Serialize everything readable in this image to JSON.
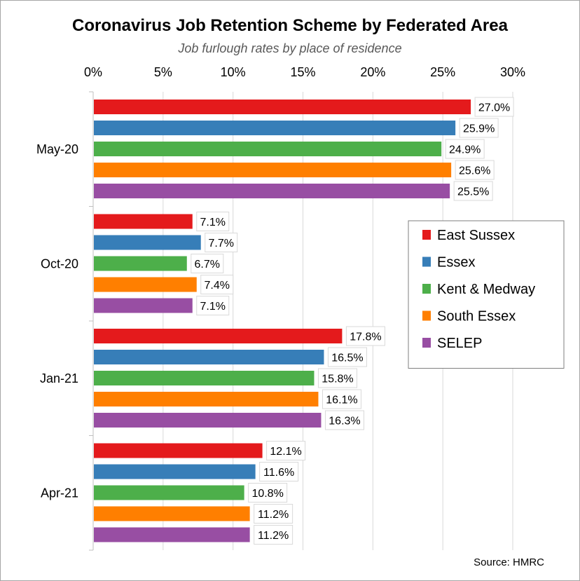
{
  "chart_data": {
    "type": "bar",
    "orientation": "horizontal",
    "title": "Coronavirus Job Retention Scheme by Federated Area",
    "subtitle": "Job furlough rates by place of residence",
    "xlim": [
      0,
      30
    ],
    "xticks": [
      "0%",
      "5%",
      "10%",
      "15%",
      "20%",
      "25%",
      "30%"
    ],
    "xtick_values": [
      0,
      5,
      10,
      15,
      20,
      25,
      30
    ],
    "grid": "vertical",
    "legend_position": "right",
    "categories": [
      "May-20",
      "Oct-20",
      "Jan-21",
      "Apr-21"
    ],
    "series": [
      {
        "name": "East Sussex",
        "color": "#e41a1c",
        "values": [
          27.0,
          7.1,
          17.8,
          12.1
        ],
        "labels": [
          "27.0%",
          "7.1%",
          "17.8%",
          "12.1%"
        ]
      },
      {
        "name": "Essex",
        "color": "#377eb8",
        "values": [
          25.9,
          7.7,
          16.5,
          11.6
        ],
        "labels": [
          "25.9%",
          "7.7%",
          "16.5%",
          "11.6%"
        ]
      },
      {
        "name": "Kent & Medway",
        "color": "#4daf4a",
        "values": [
          24.9,
          6.7,
          15.8,
          10.8
        ],
        "labels": [
          "24.9%",
          "6.7%",
          "15.8%",
          "10.8%"
        ]
      },
      {
        "name": "South Essex",
        "color": "#ff7f00",
        "values": [
          25.6,
          7.4,
          16.1,
          11.2
        ],
        "labels": [
          "25.6%",
          "7.4%",
          "16.1%",
          "11.2%"
        ]
      },
      {
        "name": "SELEP",
        "color": "#984ea3",
        "values": [
          25.5,
          7.1,
          16.3,
          11.2
        ],
        "labels": [
          "25.5%",
          "7.1%",
          "16.3%",
          "11.2%"
        ]
      }
    ],
    "source": "Source: HMRC"
  }
}
